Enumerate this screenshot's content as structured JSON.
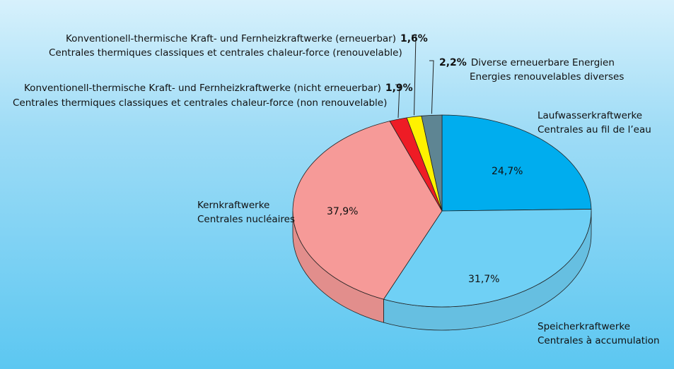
{
  "chart_data": {
    "type": "pie",
    "style": "3d",
    "series": [
      {
        "slices": [
          {
            "label_de": "Laufwasserkraftwerke",
            "label_fr": "Centrales au fil de l’eau",
            "value": 24.7,
            "value_text": "24,7%",
            "color": "#00adee"
          },
          {
            "label_de": "Speicherkraftwerke",
            "label_fr": "Centrales à accumulation",
            "value": 31.7,
            "value_text": "31,7%",
            "color": "#6fd0f5"
          },
          {
            "label_de": "Kernkraftwerke",
            "label_fr": "Centrales nucléaires",
            "value": 37.9,
            "value_text": "37,9%",
            "color": "#f69a98"
          },
          {
            "label_de": "Konventionell-thermische Kraft- und Fernheizkraftwerke (nicht erneuerbar)",
            "label_fr": "Centrales thermiques classiques et centrales chaleur-force (non renouvelable)",
            "value": 1.9,
            "value_text": "1,9%",
            "color": "#ee1c25"
          },
          {
            "label_de": "Konventionell-thermische Kraft- und Fernheizkraftwerke (erneuerbar)",
            "label_fr": "Centrales thermiques classiques et centrales chaleur-force (renouvelable)",
            "value": 1.6,
            "value_text": "1,6%",
            "color": "#fff200"
          },
          {
            "label_de": "Diverse erneuerbare Energien",
            "label_fr": "Energies renouvelables diverses",
            "value": 2.2,
            "value_text": "2,2%",
            "color": "#5e8593"
          }
        ]
      }
    ]
  }
}
